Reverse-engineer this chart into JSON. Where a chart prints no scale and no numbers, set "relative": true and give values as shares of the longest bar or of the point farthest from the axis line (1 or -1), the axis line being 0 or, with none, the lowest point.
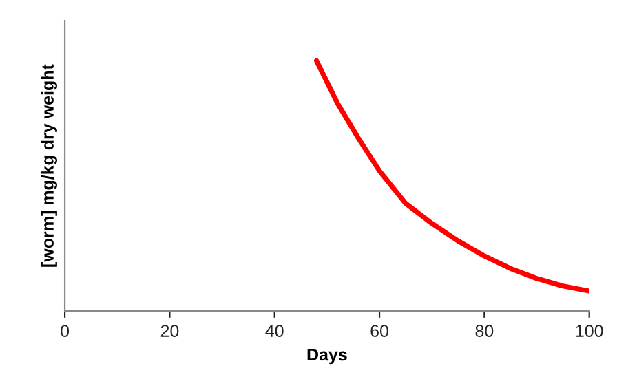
{
  "chart_data": {
    "type": "line",
    "relative": true,
    "xlabel": "Days",
    "ylabel": "[worm] mg/kg dry weight",
    "xlim": [
      0,
      100
    ],
    "xticks": [
      0,
      20,
      40,
      60,
      80,
      100
    ],
    "grid": false,
    "marker": "none",
    "line_style": "solid",
    "series": [
      {
        "color": "#ff0000",
        "x": [
          48,
          52,
          56,
          60,
          65,
          70,
          75,
          80,
          85,
          90,
          95,
          100
        ],
        "values": [
          1,
          0.83,
          0.69,
          0.56,
          0.43,
          0.35,
          0.28,
          0.22,
          0.17,
          0.13,
          0.1,
          0.08
        ]
      }
    ]
  }
}
